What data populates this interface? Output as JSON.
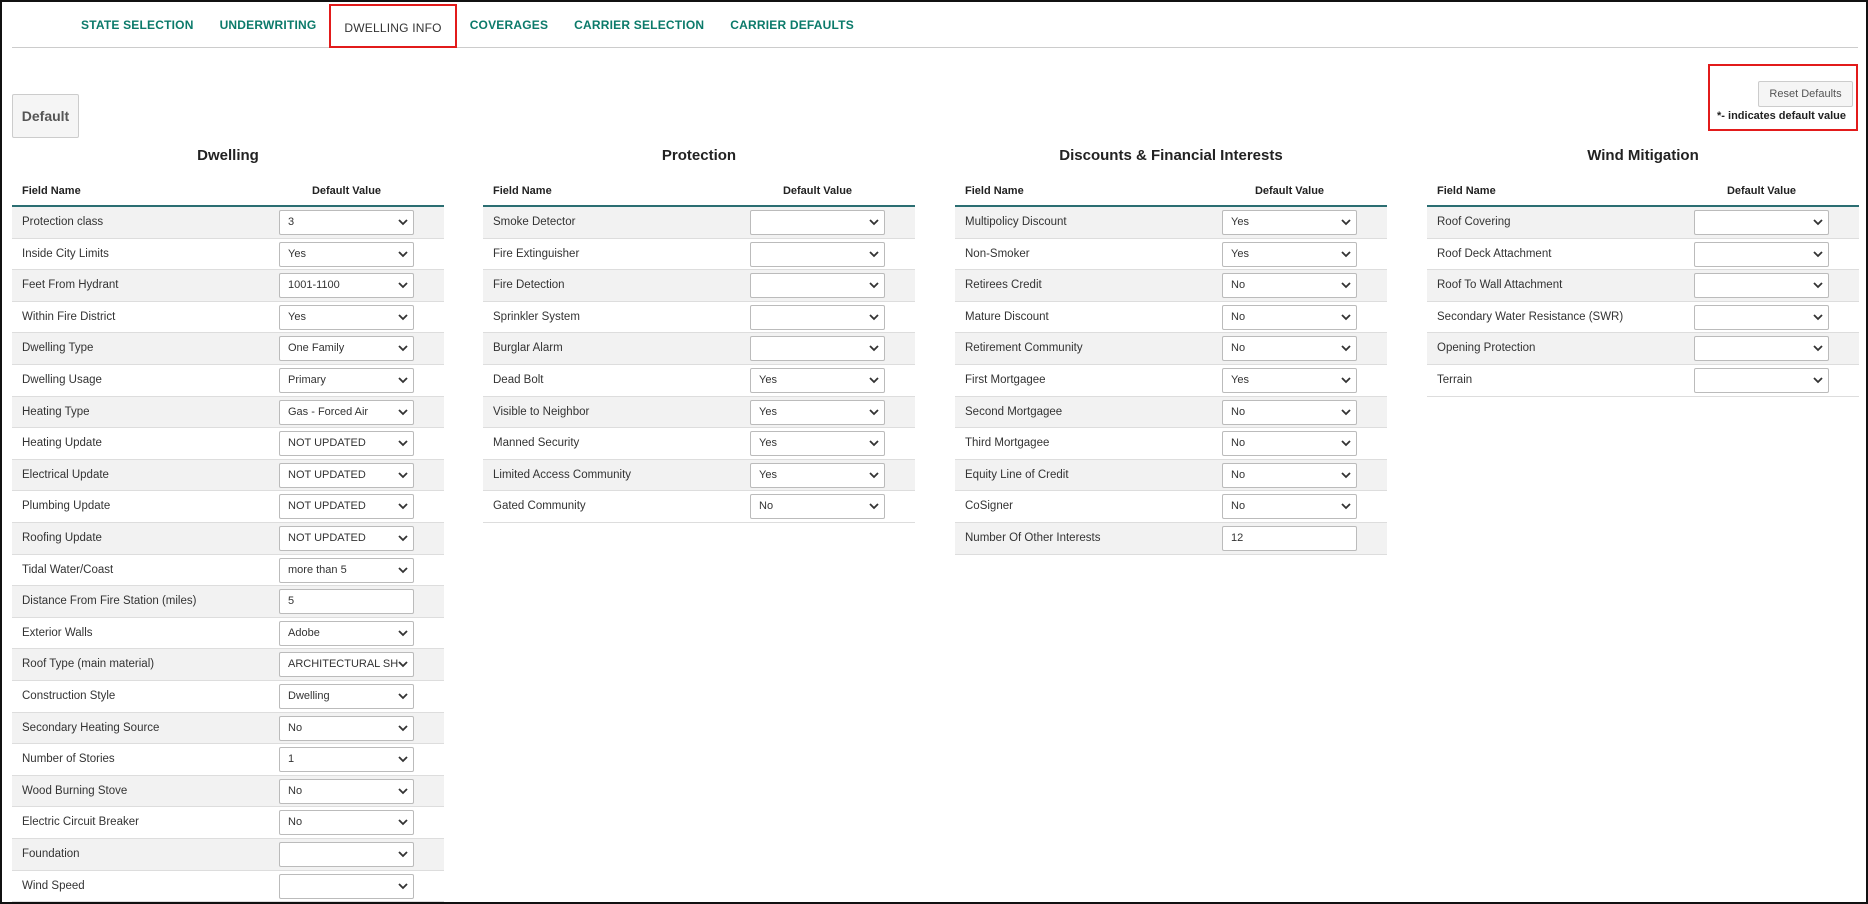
{
  "tabs": [
    "STATE SELECTION",
    "UNDERWRITING",
    "DWELLING INFO",
    "COVERAGES",
    "CARRIER SELECTION",
    "CARRIER DEFAULTS"
  ],
  "default_button": "Default",
  "reset_button": "Reset Defaults",
  "default_note": "*- indicates default value",
  "sections": [
    {
      "title": "Dwelling",
      "headers": [
        "Field Name",
        "Default Value"
      ],
      "rows": [
        {
          "field": "Protection class",
          "value": "3"
        },
        {
          "field": "Inside City Limits",
          "value": "Yes"
        },
        {
          "field": "Feet From Hydrant",
          "value": "1001-1100"
        },
        {
          "field": "Within Fire District",
          "value": "Yes"
        },
        {
          "field": "Dwelling Type",
          "value": "One Family"
        },
        {
          "field": "Dwelling Usage",
          "value": "Primary"
        },
        {
          "field": "Heating Type",
          "value": "Gas - Forced Air"
        },
        {
          "field": "Heating Update",
          "value": "NOT UPDATED"
        },
        {
          "field": "Electrical Update",
          "value": "NOT UPDATED"
        },
        {
          "field": "Plumbing Update",
          "value": "NOT UPDATED"
        },
        {
          "field": "Roofing Update",
          "value": "NOT UPDATED"
        },
        {
          "field": "Tidal Water/Coast",
          "value": "more than 5"
        },
        {
          "field": "Distance From Fire Station (miles)",
          "value": "5",
          "kind": "text"
        },
        {
          "field": "Exterior Walls",
          "value": "Adobe"
        },
        {
          "field": "Roof Type (main material)",
          "value": "ARCHITECTURAL SH"
        },
        {
          "field": "Construction Style",
          "value": "Dwelling"
        },
        {
          "field": "Secondary Heating Source",
          "value": "No"
        },
        {
          "field": "Number of Stories",
          "value": "1"
        },
        {
          "field": "Wood Burning Stove",
          "value": "No"
        },
        {
          "field": "Electric Circuit Breaker",
          "value": "No"
        },
        {
          "field": "Foundation"
        },
        {
          "field": "Wind Speed"
        }
      ]
    },
    {
      "title": "Protection",
      "headers": [
        "Field Name",
        "Default Value"
      ],
      "rows": [
        {
          "field": "Smoke Detector"
        },
        {
          "field": "Fire Extinguisher"
        },
        {
          "field": "Fire Detection"
        },
        {
          "field": "Sprinkler System"
        },
        {
          "field": "Burglar Alarm"
        },
        {
          "field": "Dead Bolt",
          "value": "Yes"
        },
        {
          "field": "Visible to Neighbor",
          "value": "Yes"
        },
        {
          "field": "Manned Security",
          "value": "Yes"
        },
        {
          "field": "Limited Access Community",
          "value": "Yes"
        },
        {
          "field": "Gated Community",
          "value": "No"
        }
      ]
    },
    {
      "title": "Discounts & Financial Interests",
      "headers": [
        "Field Name",
        "Default Value"
      ],
      "rows": [
        {
          "field": "Multipolicy Discount",
          "value": "Yes"
        },
        {
          "field": "Non-Smoker",
          "value": "Yes"
        },
        {
          "field": "Retirees Credit",
          "value": "No"
        },
        {
          "field": "Mature Discount",
          "value": "No"
        },
        {
          "field": "Retirement Community",
          "value": "No"
        },
        {
          "field": "First Mortgagee",
          "value": "Yes"
        },
        {
          "field": "Second Mortgagee",
          "value": "No"
        },
        {
          "field": "Third Mortgagee",
          "value": "No"
        },
        {
          "field": "Equity Line of Credit",
          "value": "No"
        },
        {
          "field": "CoSigner",
          "value": "No"
        },
        {
          "field": "Number Of Other Interests",
          "value": "12",
          "kind": "text"
        }
      ]
    },
    {
      "title": "Wind Mitigation",
      "headers": [
        "Field Name",
        "Default Value"
      ],
      "rows": [
        {
          "field": "Roof Covering"
        },
        {
          "field": "Roof Deck Attachment"
        },
        {
          "field": "Roof To Wall Attachment"
        },
        {
          "field": "Secondary Water Resistance (SWR)"
        },
        {
          "field": "Opening Protection"
        },
        {
          "field": "Terrain"
        }
      ]
    }
  ]
}
